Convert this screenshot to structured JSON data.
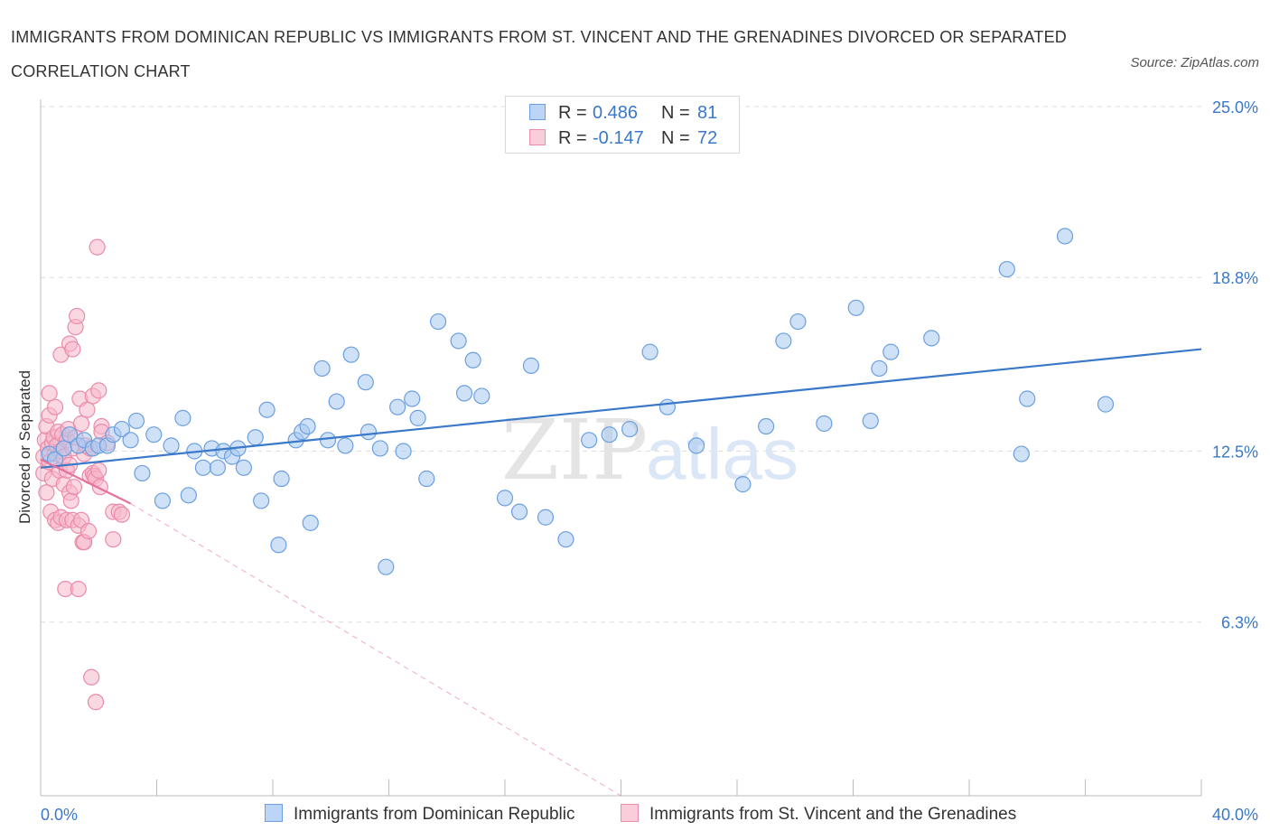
{
  "title": "IMMIGRANTS FROM DOMINICAN REPUBLIC VS IMMIGRANTS FROM ST. VINCENT AND THE GRENADINES DIVORCED OR SEPARATED CORRELATION CHART",
  "source": "Source: ZipAtlas.com",
  "watermark": {
    "zip": "ZIP",
    "atlas": "atlas"
  },
  "legend": {
    "rows": [
      {
        "r_label": "R =",
        "r_value": "0.486",
        "n_label": "N =",
        "n_value": "81"
      },
      {
        "r_label": "R =",
        "r_value": "-0.147",
        "n_label": "N =",
        "n_value": "72"
      }
    ]
  },
  "chart_data": {
    "type": "scatter",
    "title": "IMMIGRANTS FROM DOMINICAN REPUBLIC VS IMMIGRANTS FROM ST. VINCENT AND THE GRENADINES DIVORCED OR SEPARATED CORRELATION CHART",
    "xlabel": "",
    "ylabel": "Divorced or Separated",
    "xlim": [
      0,
      40
    ],
    "ylim": [
      0,
      25
    ],
    "x_tick_labels": [
      "0.0%",
      "40.0%"
    ],
    "y_ticks": [
      6.3,
      12.5,
      18.8,
      25.0
    ],
    "y_tick_labels": [
      "6.3%",
      "12.5%",
      "18.8%",
      "25.0%"
    ],
    "grid": true,
    "legend_position": "top-center",
    "colors": {
      "blue_fill": "#a8c8f0",
      "blue_stroke": "#6b9fe0",
      "blue_line": "#3a78c9",
      "pink_fill": "#f6b8cb",
      "pink_stroke": "#ec8aaa",
      "pink_line": "#e8719b",
      "tick_text": "#3a78c9"
    },
    "series": [
      {
        "name": "Immigrants from Dominican Republic",
        "r": 0.486,
        "n": 81,
        "trend": {
          "x": [
            0,
            40
          ],
          "y": [
            11.9,
            16.2
          ]
        },
        "points": [
          [
            0.3,
            12.4
          ],
          [
            0.5,
            12.2
          ],
          [
            0.8,
            12.6
          ],
          [
            1.0,
            13.1
          ],
          [
            1.3,
            12.7
          ],
          [
            1.5,
            12.9
          ],
          [
            1.8,
            12.6
          ],
          [
            2.0,
            12.7
          ],
          [
            2.3,
            12.7
          ],
          [
            2.5,
            13.1
          ],
          [
            2.8,
            13.3
          ],
          [
            3.1,
            12.9
          ],
          [
            3.3,
            13.6
          ],
          [
            3.5,
            11.7
          ],
          [
            3.9,
            13.1
          ],
          [
            4.2,
            10.7
          ],
          [
            4.5,
            12.7
          ],
          [
            4.9,
            13.7
          ],
          [
            5.1,
            10.9
          ],
          [
            5.3,
            12.5
          ],
          [
            5.6,
            11.9
          ],
          [
            5.9,
            12.6
          ],
          [
            6.1,
            11.9
          ],
          [
            6.3,
            12.5
          ],
          [
            6.6,
            12.3
          ],
          [
            6.8,
            12.6
          ],
          [
            7.0,
            11.9
          ],
          [
            7.4,
            13.0
          ],
          [
            7.6,
            10.7
          ],
          [
            7.8,
            14.0
          ],
          [
            8.2,
            9.1
          ],
          [
            8.3,
            11.5
          ],
          [
            8.8,
            12.9
          ],
          [
            9.0,
            13.2
          ],
          [
            9.2,
            13.4
          ],
          [
            9.3,
            9.9
          ],
          [
            9.7,
            15.5
          ],
          [
            9.9,
            12.9
          ],
          [
            10.2,
            14.3
          ],
          [
            10.5,
            12.7
          ],
          [
            10.7,
            16.0
          ],
          [
            11.2,
            15.0
          ],
          [
            11.3,
            13.2
          ],
          [
            11.7,
            12.6
          ],
          [
            11.9,
            8.3
          ],
          [
            12.3,
            14.1
          ],
          [
            12.5,
            12.5
          ],
          [
            12.8,
            14.4
          ],
          [
            13.0,
            13.7
          ],
          [
            13.3,
            11.5
          ],
          [
            13.7,
            17.2
          ],
          [
            14.4,
            16.5
          ],
          [
            14.6,
            14.6
          ],
          [
            14.9,
            15.8
          ],
          [
            15.2,
            14.5
          ],
          [
            16.0,
            10.8
          ],
          [
            16.5,
            10.3
          ],
          [
            16.9,
            15.6
          ],
          [
            17.4,
            10.1
          ],
          [
            18.1,
            9.3
          ],
          [
            18.9,
            12.9
          ],
          [
            19.6,
            13.1
          ],
          [
            20.3,
            13.3
          ],
          [
            21.0,
            16.1
          ],
          [
            21.6,
            14.1
          ],
          [
            22.6,
            12.7
          ],
          [
            24.2,
            11.3
          ],
          [
            25.0,
            13.4
          ],
          [
            25.6,
            16.5
          ],
          [
            26.1,
            17.2
          ],
          [
            27.0,
            13.5
          ],
          [
            28.1,
            17.7
          ],
          [
            28.6,
            13.6
          ],
          [
            28.9,
            15.5
          ],
          [
            29.3,
            16.1
          ],
          [
            30.7,
            16.6
          ],
          [
            33.3,
            19.1
          ],
          [
            33.8,
            12.4
          ],
          [
            34.0,
            14.4
          ],
          [
            35.3,
            20.3
          ],
          [
            36.7,
            14.2
          ]
        ]
      },
      {
        "name": "Immigrants from St. Vincent and the Grenadines",
        "r": -0.147,
        "n": 72,
        "trend": {
          "x": [
            0,
            3.1
          ],
          "y": [
            12.2,
            10.6
          ]
        },
        "trend_extended": {
          "x": [
            3.1,
            20.0
          ],
          "y": [
            10.6,
            0
          ]
        },
        "points": [
          [
            0.1,
            11.7
          ],
          [
            0.1,
            12.3
          ],
          [
            0.15,
            12.9
          ],
          [
            0.2,
            13.4
          ],
          [
            0.2,
            11.0
          ],
          [
            0.25,
            12.6
          ],
          [
            0.3,
            13.8
          ],
          [
            0.3,
            12.1
          ],
          [
            0.3,
            14.6
          ],
          [
            0.35,
            10.3
          ],
          [
            0.4,
            12.8
          ],
          [
            0.4,
            11.5
          ],
          [
            0.45,
            13.0
          ],
          [
            0.5,
            12.4
          ],
          [
            0.5,
            10.0
          ],
          [
            0.5,
            14.1
          ],
          [
            0.55,
            12.7
          ],
          [
            0.6,
            9.9
          ],
          [
            0.6,
            13.2
          ],
          [
            0.65,
            11.8
          ],
          [
            0.7,
            12.5
          ],
          [
            0.7,
            16.0
          ],
          [
            0.7,
            10.1
          ],
          [
            0.75,
            13.1
          ],
          [
            0.8,
            12.3
          ],
          [
            0.8,
            11.3
          ],
          [
            0.85,
            7.5
          ],
          [
            0.9,
            12.9
          ],
          [
            0.9,
            10.0
          ],
          [
            0.9,
            11.8
          ],
          [
            0.95,
            13.3
          ],
          [
            1.0,
            16.4
          ],
          [
            1.0,
            11.0
          ],
          [
            1.0,
            12.0
          ],
          [
            1.05,
            10.7
          ],
          [
            1.1,
            10.0
          ],
          [
            1.1,
            16.2
          ],
          [
            1.1,
            12.6
          ],
          [
            1.15,
            11.2
          ],
          [
            1.2,
            13.0
          ],
          [
            1.2,
            17.0
          ],
          [
            1.25,
            17.4
          ],
          [
            1.3,
            7.5
          ],
          [
            1.3,
            9.8
          ],
          [
            1.35,
            14.4
          ],
          [
            1.4,
            13.5
          ],
          [
            1.4,
            10.0
          ],
          [
            1.45,
            9.2
          ],
          [
            1.5,
            12.4
          ],
          [
            1.5,
            9.2
          ],
          [
            1.55,
            12.7
          ],
          [
            1.6,
            14.0
          ],
          [
            1.65,
            9.6
          ],
          [
            1.7,
            12.6
          ],
          [
            1.7,
            11.6
          ],
          [
            1.75,
            4.3
          ],
          [
            1.8,
            14.5
          ],
          [
            1.8,
            11.7
          ],
          [
            1.85,
            11.6
          ],
          [
            1.9,
            3.4
          ],
          [
            1.9,
            11.5
          ],
          [
            1.95,
            19.9
          ],
          [
            2.0,
            14.7
          ],
          [
            2.0,
            11.8
          ],
          [
            2.05,
            11.2
          ],
          [
            2.1,
            13.4
          ],
          [
            2.1,
            13.2
          ],
          [
            2.3,
            12.8
          ],
          [
            2.5,
            10.3
          ],
          [
            2.5,
            9.3
          ],
          [
            2.7,
            10.3
          ],
          [
            2.8,
            10.2
          ]
        ]
      }
    ]
  },
  "bottom_legend": [
    {
      "label": "Immigrants from Dominican Republic"
    },
    {
      "label": "Immigrants from St. Vincent and the Grenadines"
    }
  ]
}
